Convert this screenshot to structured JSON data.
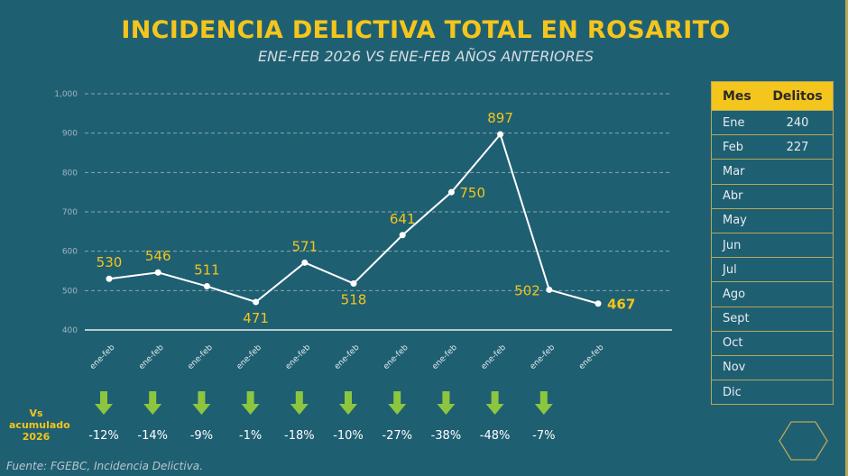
{
  "title": "INCIDENCIA DELICTIVA TOTAL EN ROSARITO",
  "subtitle": "ENE-FEB 2026 VS ENE-FEB AÑOS ANTERIORES",
  "colors": {
    "background": "#1f5f72",
    "accent": "#f4c51c",
    "line": "#ffffff",
    "arrow": "#8cc63f",
    "border": "#b8a85a"
  },
  "chart_data": {
    "type": "line",
    "categories": [
      "ene-feb",
      "ene-feb",
      "ene-feb",
      "ene-feb",
      "ene-feb",
      "ene-feb",
      "ene-feb",
      "ene-feb",
      "ene-feb",
      "ene-feb",
      "ene-feb"
    ],
    "values": [
      530,
      546,
      511,
      471,
      571,
      518,
      641,
      750,
      897,
      502,
      467
    ],
    "ylim": [
      400,
      1000
    ],
    "yticks": [
      "400",
      "500",
      "600",
      "700",
      "800",
      "900",
      "1,000"
    ],
    "grid": true,
    "title": "",
    "xlabel": "",
    "ylabel": ""
  },
  "comparison": {
    "label_lines": [
      "Vs",
      "acumulado",
      "2026"
    ],
    "arrow_icon": "arrow-down-icon",
    "percentages": [
      "-12%",
      "-14%",
      "-9%",
      "-1%",
      "-18%",
      "-10%",
      "-27%",
      "-38%",
      "-48%",
      "-7%"
    ]
  },
  "table": {
    "headers": [
      "Mes",
      "Delitos"
    ],
    "rows": [
      [
        "Ene",
        "240"
      ],
      [
        "Feb",
        "227"
      ],
      [
        "Mar",
        ""
      ],
      [
        "Abr",
        ""
      ],
      [
        "May",
        ""
      ],
      [
        "Jun",
        ""
      ],
      [
        "Jul",
        ""
      ],
      [
        "Ago",
        ""
      ],
      [
        "Sept",
        ""
      ],
      [
        "Oct",
        ""
      ],
      [
        "Nov",
        ""
      ],
      [
        "Dic",
        ""
      ]
    ]
  },
  "source": "Fuente: FGEBC, Incidencia Delictiva."
}
